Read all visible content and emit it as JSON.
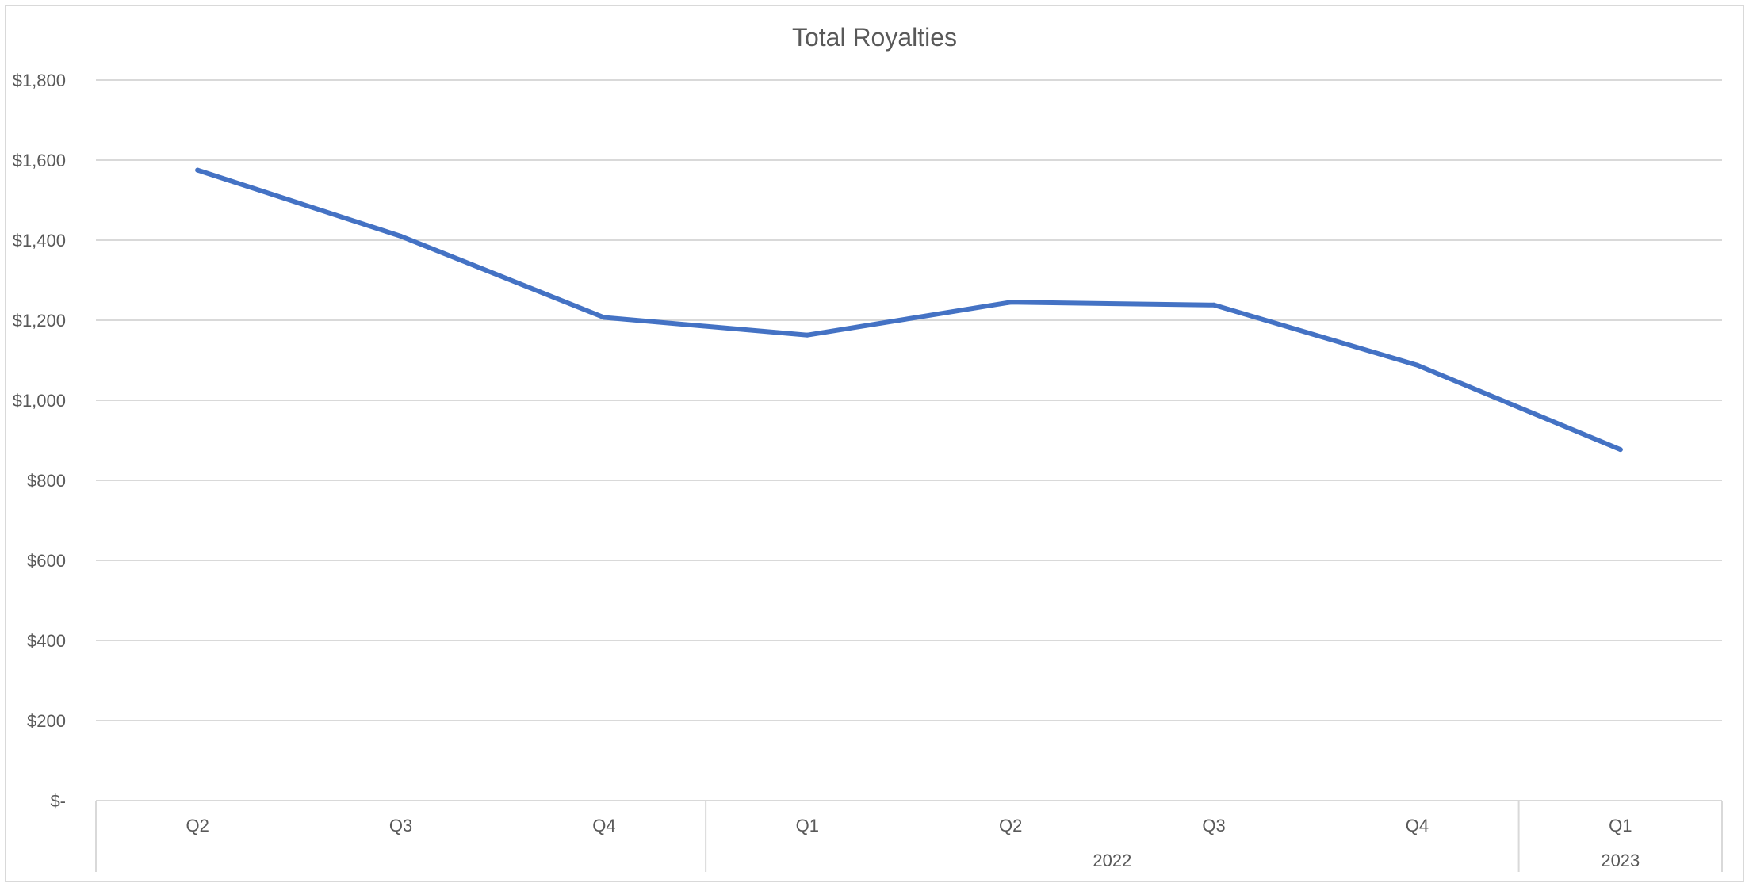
{
  "chart_data": {
    "type": "line",
    "title": "Total Royalties",
    "xlabel": "",
    "ylabel": "",
    "categories": [
      "Q2",
      "Q3",
      "Q4",
      "Q1",
      "Q2",
      "Q3",
      "Q4",
      "Q1"
    ],
    "category_groups": [
      {
        "label": "",
        "span": 3
      },
      {
        "label": "2022",
        "span": 4
      },
      {
        "label": "2023",
        "span": 1
      }
    ],
    "series": [
      {
        "values": [
          1575,
          1410,
          1207,
          1163,
          1245,
          1238,
          1088,
          877
        ],
        "color": "#4472C4"
      }
    ],
    "ylim": [
      0,
      1800
    ],
    "yticks": [
      0,
      200,
      400,
      600,
      800,
      1000,
      1200,
      1400,
      1600,
      1800
    ],
    "ytick_labels": [
      "$-",
      "$200",
      "$400",
      "$600",
      "$800",
      "$1,000",
      "$1,200",
      "$1,400",
      "$1,600",
      "$1,800"
    ],
    "grid": true,
    "legend": "none"
  },
  "colors": {
    "series": "#4472C4",
    "grid": "#D9D9D9",
    "text": "#595959",
    "border": "#D9D9D9"
  }
}
